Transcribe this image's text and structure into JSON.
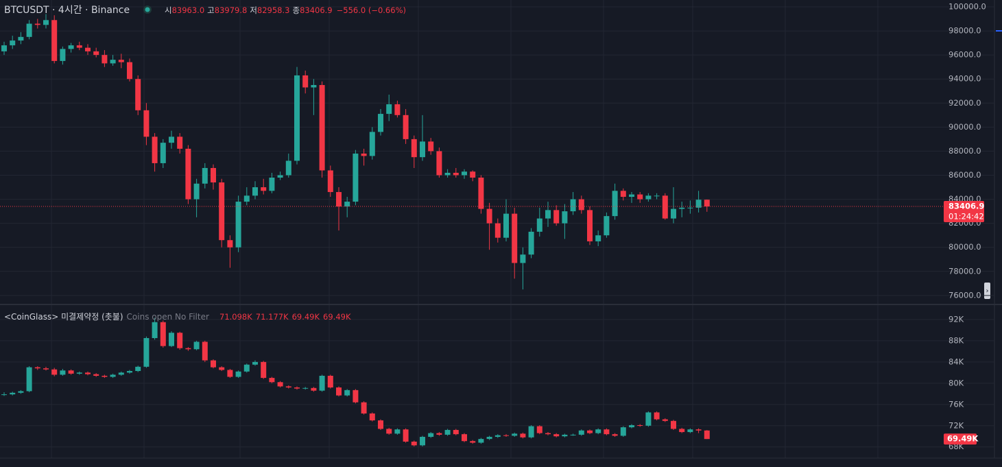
{
  "chart_data": [
    {
      "type": "candlestick",
      "title": "BTCUSDT · 4시간 · Binance",
      "ohlc_prefixes": [
        "시",
        "고",
        "저",
        "종"
      ],
      "ohlc_labels": [
        "83963.0",
        "83979.8",
        "82958.3",
        "83406.9"
      ],
      "change_label": "−556.0 (−0.66%)",
      "countdown": "01:24:42",
      "up_color": "#26a69a",
      "down_color": "#f23645",
      "grid": true,
      "ylim": [
        75250,
        100570
      ],
      "yticks": [
        {
          "value": 76000,
          "label": "76000.0"
        },
        {
          "value": 78000,
          "label": "78000.0"
        },
        {
          "value": 80000,
          "label": "80000.0"
        },
        {
          "value": 82000,
          "label": "82000.0"
        },
        {
          "value": 84000,
          "label": "84000.0"
        },
        {
          "value": 86000,
          "label": "86000.0"
        },
        {
          "value": 88000,
          "label": "88000.0"
        },
        {
          "value": 90000,
          "label": "90000.0"
        },
        {
          "value": 92000,
          "label": "92000.0"
        },
        {
          "value": 94000,
          "label": "94000.0"
        },
        {
          "value": 96000,
          "label": "96000.0"
        },
        {
          "value": 98000,
          "label": "98000.0"
        },
        {
          "value": 100000,
          "label": "100000.0"
        }
      ],
      "candles": [
        [
          96300,
          97100,
          96000,
          96800
        ],
        [
          96800,
          97600,
          96500,
          97200
        ],
        [
          97200,
          97900,
          96900,
          97500
        ],
        [
          97500,
          98900,
          97300,
          98600
        ],
        [
          98600,
          99000,
          98200,
          98500
        ],
        [
          98500,
          99400,
          98200,
          98900
        ],
        [
          98900,
          99300,
          95300,
          95500
        ],
        [
          95500,
          96700,
          95200,
          96500
        ],
        [
          96500,
          97000,
          96200,
          96800
        ],
        [
          96800,
          97100,
          96400,
          96600
        ],
        [
          96600,
          96900,
          96000,
          96300
        ],
        [
          96300,
          96600,
          95800,
          96000
        ],
        [
          96000,
          96400,
          95000,
          95300
        ],
        [
          95300,
          96000,
          95100,
          95600
        ],
        [
          95600,
          96100,
          94900,
          95400
        ],
        [
          95400,
          95700,
          93800,
          94000
        ],
        [
          94000,
          94300,
          91000,
          91400
        ],
        [
          91400,
          92000,
          88500,
          89200
        ],
        [
          89200,
          89500,
          86300,
          87000
        ],
        [
          87000,
          89000,
          86600,
          88700
        ],
        [
          88700,
          89700,
          88200,
          89200
        ],
        [
          89200,
          89500,
          87800,
          88200
        ],
        [
          88200,
          88500,
          83600,
          84000
        ],
        [
          84000,
          85700,
          82500,
          85300
        ],
        [
          85300,
          87000,
          84900,
          86600
        ],
        [
          86600,
          86900,
          84800,
          85400
        ],
        [
          85400,
          85700,
          80000,
          80600
        ],
        [
          80600,
          81000,
          78300,
          80000
        ],
        [
          80000,
          84300,
          79600,
          83800
        ],
        [
          83800,
          85000,
          83500,
          84300
        ],
        [
          84300,
          85500,
          84000,
          85000
        ],
        [
          85000,
          85700,
          84400,
          84700
        ],
        [
          84700,
          86200,
          84500,
          85800
        ],
        [
          85800,
          86300,
          85600,
          86000
        ],
        [
          86000,
          87800,
          85800,
          87200
        ],
        [
          87200,
          95000,
          86900,
          94300
        ],
        [
          94300,
          94700,
          92800,
          93300
        ],
        [
          93300,
          94000,
          91000,
          93500
        ],
        [
          93500,
          93800,
          85800,
          86400
        ],
        [
          86400,
          86800,
          84200,
          84600
        ],
        [
          84600,
          85000,
          81400,
          83400
        ],
        [
          83400,
          84200,
          82500,
          83800
        ],
        [
          83800,
          88100,
          83500,
          87800
        ],
        [
          87800,
          88200,
          86800,
          87600
        ],
        [
          87600,
          90000,
          87300,
          89600
        ],
        [
          89600,
          91500,
          89300,
          91100
        ],
        [
          91100,
          92700,
          90500,
          91900
        ],
        [
          91900,
          92200,
          90800,
          91000
        ],
        [
          91000,
          91500,
          88600,
          89000
        ],
        [
          89000,
          89300,
          86600,
          87500
        ],
        [
          87500,
          91000,
          87200,
          88800
        ],
        [
          88800,
          89100,
          87700,
          88000
        ],
        [
          88000,
          88300,
          85800,
          86000
        ],
        [
          86000,
          86500,
          85800,
          86200
        ],
        [
          86200,
          86600,
          85800,
          86000
        ],
        [
          86000,
          86500,
          85700,
          86300
        ],
        [
          86300,
          86400,
          85500,
          85800
        ],
        [
          85800,
          86000,
          82800,
          83200
        ],
        [
          83200,
          83700,
          79800,
          82000
        ],
        [
          82000,
          82400,
          80400,
          80800
        ],
        [
          80800,
          84000,
          80500,
          82800
        ],
        [
          82800,
          83300,
          77400,
          78700
        ],
        [
          78700,
          80000,
          76500,
          79400
        ],
        [
          79400,
          81600,
          79100,
          81300
        ],
        [
          81300,
          83300,
          80900,
          82400
        ],
        [
          82400,
          83800,
          81700,
          83100
        ],
        [
          83100,
          83500,
          81800,
          82000
        ],
        [
          82000,
          83600,
          80700,
          83000
        ],
        [
          83000,
          84600,
          82700,
          84000
        ],
        [
          84000,
          84300,
          82800,
          83100
        ],
        [
          83100,
          83400,
          80200,
          80500
        ],
        [
          80500,
          81400,
          80100,
          81000
        ],
        [
          81000,
          82900,
          80800,
          82600
        ],
        [
          82600,
          85300,
          82300,
          84700
        ],
        [
          84700,
          84900,
          83900,
          84200
        ],
        [
          84200,
          84600,
          83700,
          84400
        ],
        [
          84400,
          84600,
          83700,
          84000
        ],
        [
          84000,
          84500,
          83800,
          84300
        ],
        [
          84300,
          84500,
          84000,
          84300
        ],
        [
          84300,
          84500,
          82300,
          82400
        ],
        [
          82400,
          85000,
          82000,
          83200
        ],
        [
          83200,
          83800,
          82500,
          83300
        ],
        [
          83300,
          83900,
          82800,
          83300
        ],
        [
          83300,
          84700,
          82900,
          83963
        ],
        [
          83963,
          83979.8,
          82958.3,
          83406.9
        ]
      ]
    },
    {
      "type": "candlestick",
      "title": "<CoinGlass> 미결제약정 (촛불)",
      "subtitle": "Coins open No Filter",
      "ohlc_labels": [
        "71.098K",
        "71.177K",
        "69.49K",
        "69.49K"
      ],
      "last_label": "69.49K",
      "up_color": "#26a69a",
      "down_color": "#f23645",
      "grid": true,
      "ylim": [
        65900,
        94700
      ],
      "yticks": [
        {
          "value": 68000,
          "label": "68K"
        },
        {
          "value": 72000,
          "label": "72K"
        },
        {
          "value": 76000,
          "label": "76K"
        },
        {
          "value": 80000,
          "label": "80K"
        },
        {
          "value": 84000,
          "label": "84K"
        },
        {
          "value": 88000,
          "label": "88K"
        },
        {
          "value": 92000,
          "label": "92K"
        }
      ],
      "candles": [
        [
          77800,
          78300,
          77600,
          77900
        ],
        [
          77900,
          78400,
          77700,
          78200
        ],
        [
          78200,
          78700,
          78000,
          78500
        ],
        [
          78500,
          83200,
          78300,
          83000
        ],
        [
          83000,
          83200,
          82500,
          82800
        ],
        [
          82800,
          83100,
          82400,
          82600
        ],
        [
          82600,
          82900,
          81300,
          81600
        ],
        [
          81600,
          82700,
          81400,
          82400
        ],
        [
          82400,
          82600,
          81600,
          81800
        ],
        [
          81800,
          82200,
          81600,
          82000
        ],
        [
          82000,
          82200,
          81500,
          81700
        ],
        [
          81700,
          81900,
          81200,
          81400
        ],
        [
          81400,
          81600,
          81000,
          81200
        ],
        [
          81200,
          81800,
          81000,
          81600
        ],
        [
          81600,
          82200,
          81400,
          82000
        ],
        [
          82000,
          82500,
          81800,
          82300
        ],
        [
          82300,
          83300,
          82100,
          83100
        ],
        [
          83100,
          88800,
          82900,
          88500
        ],
        [
          88500,
          92300,
          88200,
          91500
        ],
        [
          91500,
          91800,
          86700,
          87000
        ],
        [
          87000,
          89800,
          86800,
          89500
        ],
        [
          89500,
          89700,
          86300,
          86600
        ],
        [
          86600,
          86800,
          86100,
          86400
        ],
        [
          86400,
          88000,
          86200,
          87800
        ],
        [
          87800,
          88000,
          84000,
          84300
        ],
        [
          84300,
          84500,
          82800,
          83000
        ],
        [
          83000,
          83200,
          82300,
          82500
        ],
        [
          82500,
          82700,
          81000,
          81200
        ],
        [
          81200,
          82400,
          81000,
          82200
        ],
        [
          82200,
          83700,
          82000,
          83500
        ],
        [
          83500,
          84300,
          83300,
          84000
        ],
        [
          84000,
          84200,
          80800,
          81000
        ],
        [
          81000,
          81200,
          80000,
          80200
        ],
        [
          80200,
          80400,
          79200,
          79400
        ],
        [
          79400,
          79600,
          79000,
          79200
        ],
        [
          79200,
          79400,
          78800,
          79000
        ],
        [
          79000,
          79300,
          78800,
          79100
        ],
        [
          79100,
          79300,
          78400,
          78600
        ],
        [
          78600,
          81600,
          78400,
          81400
        ],
        [
          81400,
          81600,
          79000,
          79200
        ],
        [
          79200,
          79400,
          77500,
          77700
        ],
        [
          77700,
          78900,
          77500,
          78700
        ],
        [
          78700,
          78900,
          76200,
          76400
        ],
        [
          76400,
          76600,
          74100,
          74300
        ],
        [
          74300,
          74500,
          72800,
          73000
        ],
        [
          73000,
          73200,
          71200,
          71400
        ],
        [
          71400,
          71600,
          70300,
          70500
        ],
        [
          70500,
          71500,
          70300,
          71300
        ],
        [
          71300,
          71500,
          68800,
          69000
        ],
        [
          69000,
          69200,
          68100,
          68300
        ],
        [
          68300,
          70100,
          68100,
          69900
        ],
        [
          69900,
          70800,
          69700,
          70600
        ],
        [
          70600,
          70800,
          70100,
          70300
        ],
        [
          70300,
          71400,
          70100,
          71200
        ],
        [
          71200,
          71400,
          70200,
          70400
        ],
        [
          70400,
          70600,
          68900,
          69100
        ],
        [
          69100,
          69300,
          68600,
          68800
        ],
        [
          68800,
          69700,
          68600,
          69500
        ],
        [
          69500,
          70100,
          69300,
          69900
        ],
        [
          69900,
          70400,
          69700,
          70200
        ],
        [
          70200,
          70400,
          69900,
          70100
        ],
        [
          70100,
          70700,
          69900,
          70500
        ],
        [
          70500,
          70700,
          69600,
          69800
        ],
        [
          69800,
          72100,
          69600,
          71900
        ],
        [
          71900,
          72100,
          70400,
          70600
        ],
        [
          70600,
          70800,
          70200,
          70400
        ],
        [
          70400,
          70600,
          69800,
          70000
        ],
        [
          70000,
          70500,
          69800,
          70300
        ],
        [
          70300,
          70500,
          70100,
          70300
        ],
        [
          70300,
          71300,
          70100,
          71100
        ],
        [
          71100,
          71300,
          70400,
          70600
        ],
        [
          70600,
          71500,
          70400,
          71300
        ],
        [
          71300,
          71500,
          70200,
          70400
        ],
        [
          70400,
          70600,
          69900,
          70100
        ],
        [
          70100,
          71900,
          69900,
          71700
        ],
        [
          71700,
          72300,
          71500,
          72100
        ],
        [
          72100,
          72300,
          71800,
          72000
        ],
        [
          72000,
          74700,
          71800,
          74500
        ],
        [
          74500,
          74700,
          73000,
          73200
        ],
        [
          73200,
          73400,
          72700,
          72900
        ],
        [
          72900,
          73100,
          71200,
          71400
        ],
        [
          71400,
          71600,
          70600,
          70800
        ],
        [
          70800,
          71500,
          70600,
          71300
        ],
        [
          71300,
          71500,
          70600,
          71098
        ],
        [
          71098,
          71177,
          69490,
          69490
        ]
      ]
    }
  ]
}
